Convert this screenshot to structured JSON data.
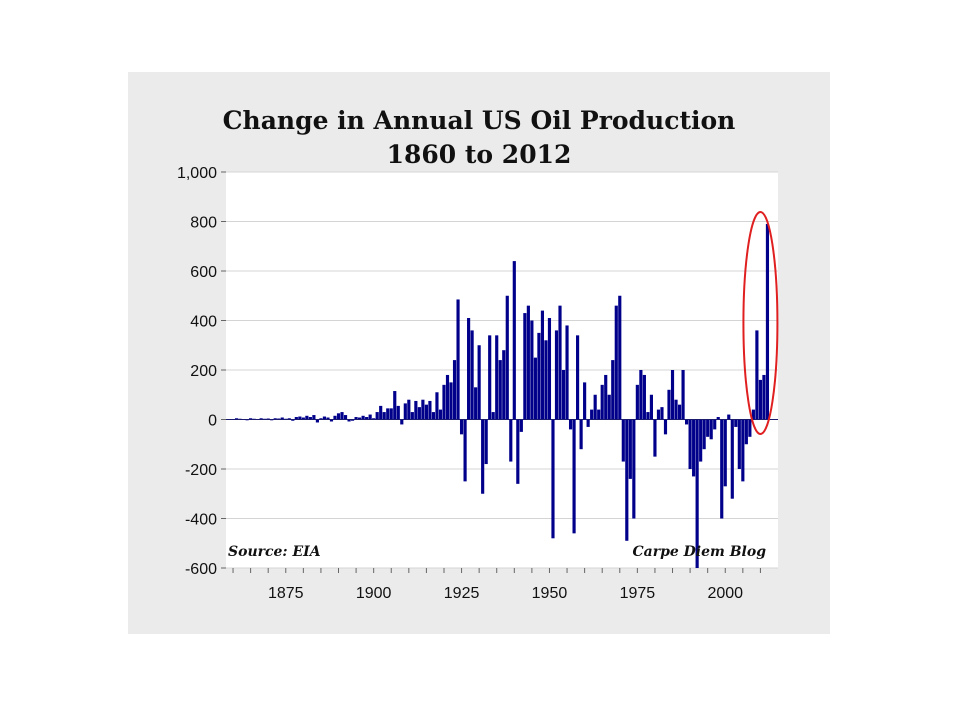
{
  "chart_data": {
    "type": "bar",
    "title": "Change in Annual US Oil Production",
    "subtitle": "1860 to 2012",
    "xlabel": "",
    "ylabel": "",
    "xlim": [
      1858,
      2015
    ],
    "ylim": [
      -600,
      1000
    ],
    "yticks": [
      1000,
      800,
      600,
      400,
      200,
      0,
      -200,
      -400,
      -600
    ],
    "ytick_labels": [
      "1,000",
      "800",
      "600",
      "400",
      "200",
      "0",
      "-200",
      "-400",
      "-600"
    ],
    "xticks": [
      1875,
      1900,
      1925,
      1950,
      1975,
      2000
    ],
    "grid": "horizontal",
    "bar_color": "#00008b",
    "source_note": "Source: EIA",
    "credit_note": "Carpe Diem Blog",
    "highlight": {
      "shape": "ellipse",
      "color": "#e02020",
      "x_range": [
        2007,
        2013
      ]
    },
    "x": [
      1860,
      1861,
      1862,
      1863,
      1864,
      1865,
      1866,
      1867,
      1868,
      1869,
      1870,
      1871,
      1872,
      1873,
      1874,
      1875,
      1876,
      1877,
      1878,
      1879,
      1880,
      1881,
      1882,
      1883,
      1884,
      1885,
      1886,
      1887,
      1888,
      1889,
      1890,
      1891,
      1892,
      1893,
      1894,
      1895,
      1896,
      1897,
      1898,
      1899,
      1900,
      1901,
      1902,
      1903,
      1904,
      1905,
      1906,
      1907,
      1908,
      1909,
      1910,
      1911,
      1912,
      1913,
      1914,
      1915,
      1916,
      1917,
      1918,
      1919,
      1920,
      1921,
      1922,
      1923,
      1924,
      1925,
      1926,
      1927,
      1928,
      1929,
      1930,
      1931,
      1932,
      1933,
      1934,
      1935,
      1936,
      1937,
      1938,
      1939,
      1940,
      1941,
      1942,
      1943,
      1944,
      1945,
      1946,
      1947,
      1948,
      1949,
      1950,
      1951,
      1952,
      1953,
      1954,
      1955,
      1956,
      1957,
      1958,
      1959,
      1960,
      1961,
      1962,
      1963,
      1964,
      1965,
      1966,
      1967,
      1968,
      1969,
      1970,
      1971,
      1972,
      1973,
      1974,
      1975,
      1976,
      1977,
      1978,
      1979,
      1980,
      1981,
      1982,
      1983,
      1984,
      1985,
      1986,
      1987,
      1988,
      1989,
      1990,
      1991,
      1992,
      1993,
      1994,
      1995,
      1996,
      1997,
      1998,
      1999,
      2000,
      2001,
      2002,
      2003,
      2004,
      2005,
      2006,
      2007,
      2008,
      2009,
      2010,
      2011,
      2012
    ],
    "values": [
      2,
      5,
      3,
      2,
      -2,
      5,
      3,
      2,
      5,
      3,
      4,
      -3,
      5,
      4,
      8,
      3,
      5,
      -5,
      10,
      12,
      8,
      15,
      10,
      18,
      -12,
      5,
      12,
      8,
      -8,
      15,
      25,
      30,
      18,
      -8,
      -5,
      10,
      8,
      15,
      10,
      20,
      5,
      30,
      55,
      30,
      45,
      45,
      115,
      55,
      -20,
      65,
      80,
      30,
      75,
      50,
      80,
      60,
      75,
      30,
      110,
      40,
      140,
      180,
      150,
      240,
      485,
      -60,
      -250,
      410,
      360,
      130,
      300,
      -300,
      -180,
      340,
      30,
      340,
      240,
      280,
      500,
      -170,
      640,
      -260,
      -50,
      430,
      460,
      400,
      250,
      350,
      440,
      320,
      410,
      -480,
      360,
      460,
      200,
      380,
      -40,
      -460,
      340,
      -120,
      150,
      -30,
      40,
      100,
      40,
      140,
      180,
      100,
      240,
      460,
      500,
      -170,
      -490,
      -240,
      -400,
      140,
      200,
      180,
      30,
      100,
      -150,
      40,
      50,
      -60,
      120,
      200,
      80,
      60,
      200,
      -20,
      -200,
      -230,
      -600,
      -170,
      -120,
      -70,
      -80,
      -40,
      10,
      -400,
      -270,
      20,
      -320,
      -30,
      -200,
      -250,
      -100,
      -70,
      40,
      360,
      160,
      180,
      790
    ]
  }
}
